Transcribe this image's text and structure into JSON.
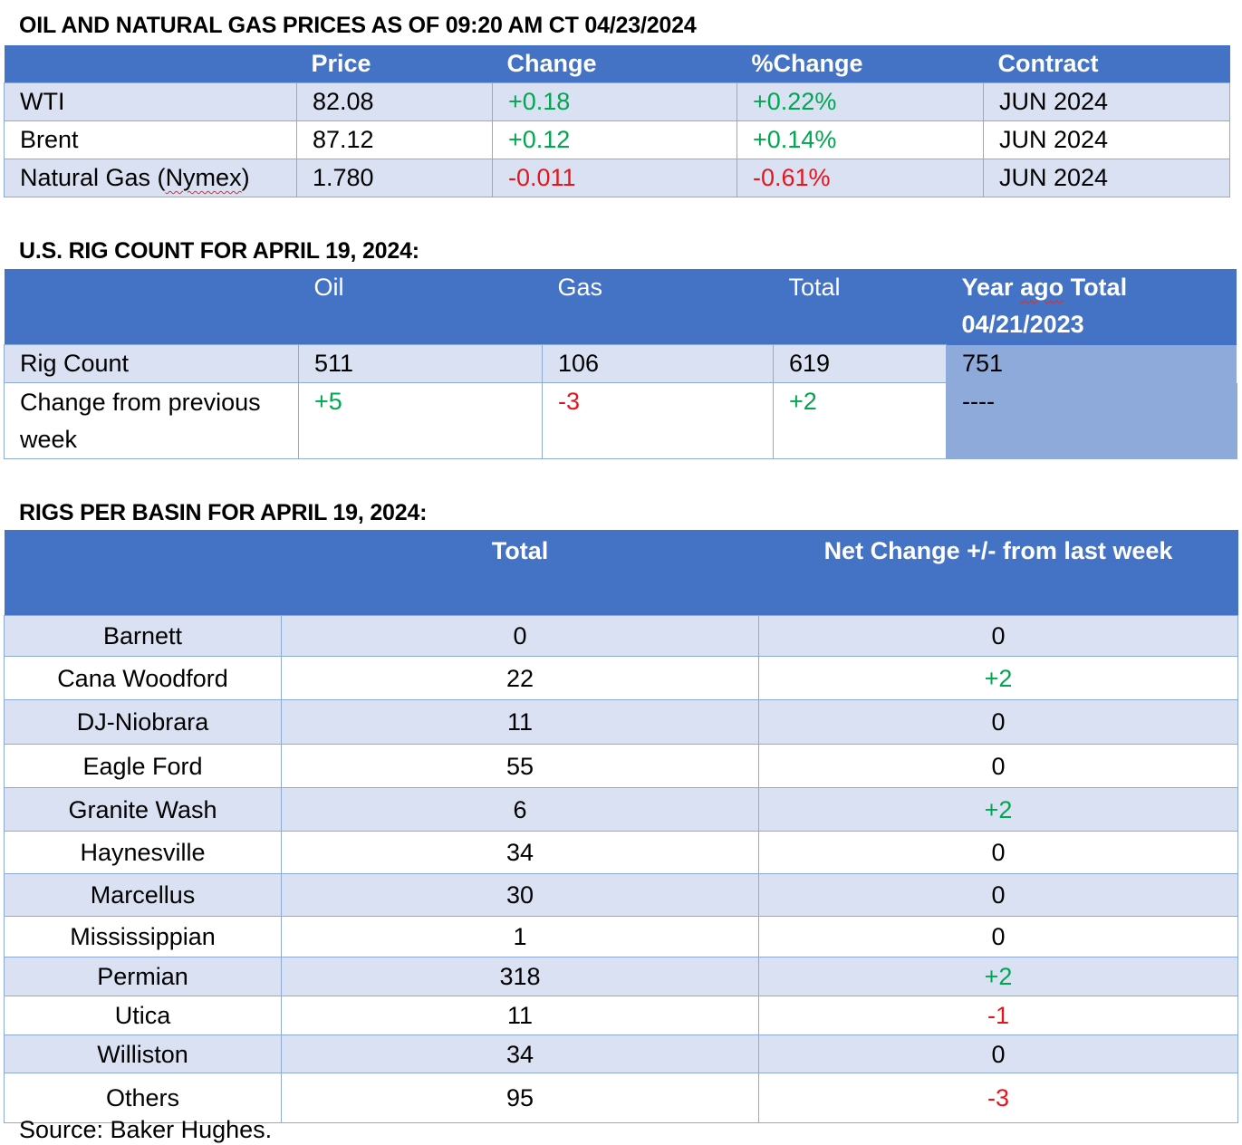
{
  "prices": {
    "title": "OIL AND NATURAL GAS PRICES AS OF 09:20 AM CT 04/23/2024",
    "headers": [
      "",
      "Price",
      "Change",
      "%Change",
      "Contract"
    ],
    "rows": [
      {
        "name": "WTI",
        "price": "82.08",
        "change": "+0.18",
        "pct": "+0.22%",
        "contract": "JUN 2024"
      },
      {
        "name_pre": "Brent",
        "name": "Brent",
        "price": "87.12",
        "change": "+0.12",
        "pct": "+0.14%",
        "contract": "JUN 2024"
      },
      {
        "name_pre": "Natural Gas (",
        "name_mid": "Nymex",
        "name_post": ")",
        "price": "1.780",
        "change": "-0.011",
        "pct": "-0.61%",
        "contract": "JUN 2024"
      }
    ]
  },
  "rigs": {
    "title": "U.S. RIG COUNT FOR APRIL 19, 2024:",
    "headers": {
      "oil": "Oil",
      "gas": "Gas",
      "total": "Total",
      "year_ago_pre": "Year ",
      "year_ago_mid": "ago",
      "year_ago_post": " Total",
      "year_ago_date": "04/21/2023"
    },
    "count_row": {
      "label": "Rig Count",
      "oil": "511",
      "gas": "106",
      "total": "619",
      "year_ago": "751"
    },
    "change_row": {
      "label": "Change from previous week",
      "oil": "+5",
      "gas": "-3",
      "total": "+2",
      "year_ago": "----"
    }
  },
  "basins": {
    "title": "RIGS PER BASIN FOR APRIL 19, 2024:",
    "headers": {
      "total": "Total",
      "net": "Net Change +/- from last week"
    },
    "rows": [
      {
        "name": "Barnett",
        "total": "0",
        "net": "0"
      },
      {
        "name": "Cana Woodford",
        "total": "22",
        "net": "+2"
      },
      {
        "name": "DJ-Niobrara",
        "total": "11",
        "net": "0"
      },
      {
        "name": "Eagle Ford",
        "total": "55",
        "net": "0"
      },
      {
        "name": "Granite Wash",
        "total": "6",
        "net": "+2"
      },
      {
        "name": "Haynesville",
        "total": "34",
        "net": "0"
      },
      {
        "name": "Marcellus",
        "total": "30",
        "net": "0"
      },
      {
        "name": "Mississippian",
        "total": "1",
        "net": "0"
      },
      {
        "name": "Permian",
        "total": "318",
        "net": "+2"
      },
      {
        "name": "Utica",
        "total": "11",
        "net": "-1"
      },
      {
        "name": "Williston",
        "total": "34",
        "net": "0"
      },
      {
        "name": "Others",
        "total": "95",
        "net": "-3"
      }
    ]
  },
  "source": "Source: Baker Hughes.",
  "colors": {
    "header": "#4472c4",
    "band": "#d9e1f2",
    "year_ago": "#8eaadb",
    "positive": "#00a650",
    "negative": "#e8141b"
  }
}
